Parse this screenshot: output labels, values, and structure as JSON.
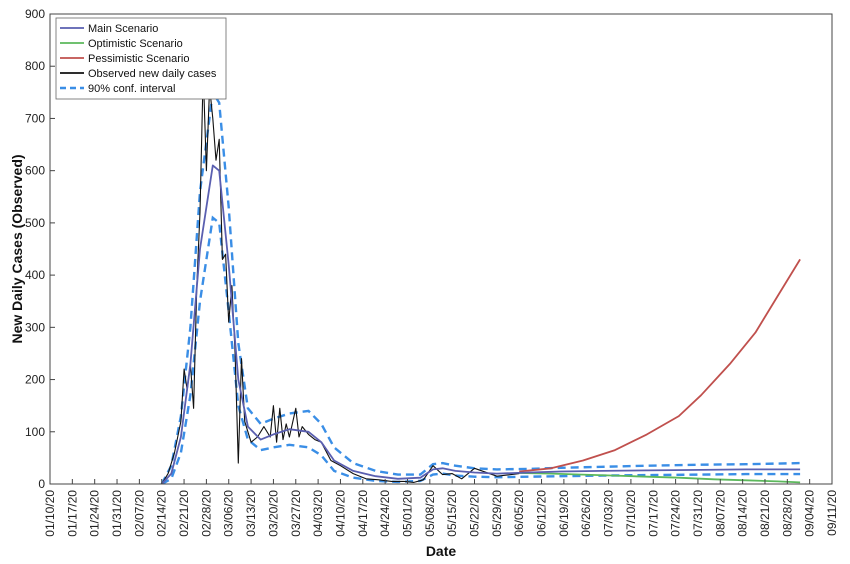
{
  "chart_data": {
    "type": "line",
    "title": "",
    "xlabel": "Date",
    "ylabel": "New Daily Cases (Observed)",
    "ylim": [
      0,
      900
    ],
    "yticks": [
      0,
      100,
      200,
      300,
      400,
      500,
      600,
      700,
      800,
      900
    ],
    "xlim": [
      "2020-01-10",
      "2020-09-11"
    ],
    "xticks": [
      "01/10/20",
      "01/17/20",
      "01/24/20",
      "01/31/20",
      "02/07/20",
      "02/14/20",
      "02/21/20",
      "02/28/20",
      "03/06/20",
      "03/13/20",
      "03/20/20",
      "03/27/20",
      "04/03/20",
      "04/10/20",
      "04/17/20",
      "04/24/20",
      "05/01/20",
      "05/08/20",
      "05/15/20",
      "05/22/20",
      "05/29/20",
      "06/05/20",
      "06/12/20",
      "06/19/20",
      "06/26/20",
      "07/03/20",
      "07/10/20",
      "07/17/20",
      "07/24/20",
      "07/31/20",
      "08/07/20",
      "08/14/20",
      "08/21/20",
      "08/28/20",
      "09/04/20",
      "09/11/20"
    ],
    "grid": false,
    "legend_position": "top-left",
    "colors": {
      "main": "#5a5fb0",
      "optimistic": "#5cb85c",
      "pessimistic": "#c0504d",
      "observed": "#111111",
      "ci": "#3a8ee6"
    },
    "series": [
      {
        "name": "Main Scenario",
        "style": "solid",
        "x": [
          "2020-02-14",
          "2020-02-17",
          "2020-02-20",
          "2020-02-23",
          "2020-02-26",
          "2020-03-01",
          "2020-03-03",
          "2020-03-06",
          "2020-03-09",
          "2020-03-12",
          "2020-03-16",
          "2020-03-20",
          "2020-03-25",
          "2020-03-31",
          "2020-04-04",
          "2020-04-08",
          "2020-04-14",
          "2020-04-21",
          "2020-04-28",
          "2020-05-05",
          "2020-05-09",
          "2020-05-12",
          "2020-05-16",
          "2020-05-22",
          "2020-05-29",
          "2020-06-08",
          "2020-06-18",
          "2020-07-01",
          "2020-07-15",
          "2020-08-01",
          "2020-08-15",
          "2020-09-01"
        ],
        "y": [
          0,
          20,
          90,
          230,
          450,
          610,
          600,
          420,
          200,
          110,
          85,
          95,
          105,
          100,
          80,
          45,
          25,
          15,
          10,
          12,
          28,
          30,
          25,
          22,
          20,
          22,
          24,
          25,
          26,
          27,
          28,
          28
        ]
      },
      {
        "name": "Optimistic Scenario",
        "style": "solid",
        "x": [
          "2020-06-05",
          "2020-06-15",
          "2020-06-25",
          "2020-07-05",
          "2020-07-15",
          "2020-07-25",
          "2020-08-05",
          "2020-08-15",
          "2020-08-25",
          "2020-09-01"
        ],
        "y": [
          21,
          20,
          18,
          16,
          14,
          12,
          9,
          7,
          5,
          3
        ]
      },
      {
        "name": "Pessimistic Scenario",
        "style": "solid",
        "x": [
          "2020-06-05",
          "2020-06-15",
          "2020-06-25",
          "2020-07-05",
          "2020-07-15",
          "2020-07-25",
          "2020-08-01",
          "2020-08-10",
          "2020-08-18",
          "2020-08-25",
          "2020-09-01"
        ],
        "y": [
          24,
          30,
          45,
          65,
          95,
          130,
          170,
          230,
          290,
          360,
          430
        ]
      },
      {
        "name": "Observed new daily cases",
        "style": "solid",
        "x": [
          "2020-02-14",
          "2020-02-16",
          "2020-02-18",
          "2020-02-20",
          "2020-02-21",
          "2020-02-22",
          "2020-02-23",
          "2020-02-24",
          "2020-02-25",
          "2020-02-26",
          "2020-02-27",
          "2020-02-28",
          "2020-02-29",
          "2020-03-01",
          "2020-03-02",
          "2020-03-03",
          "2020-03-04",
          "2020-03-05",
          "2020-03-06",
          "2020-03-07",
          "2020-03-08",
          "2020-03-09",
          "2020-03-10",
          "2020-03-11",
          "2020-03-12",
          "2020-03-13",
          "2020-03-15",
          "2020-03-17",
          "2020-03-19",
          "2020-03-20",
          "2020-03-21",
          "2020-03-22",
          "2020-03-23",
          "2020-03-24",
          "2020-03-25",
          "2020-03-27",
          "2020-03-28",
          "2020-03-29",
          "2020-03-31",
          "2020-04-02",
          "2020-04-04",
          "2020-04-07",
          "2020-04-10",
          "2020-04-14",
          "2020-04-18",
          "2020-04-22",
          "2020-04-26",
          "2020-04-30",
          "2020-05-03",
          "2020-05-06",
          "2020-05-09",
          "2020-05-12",
          "2020-05-15",
          "2020-05-18",
          "2020-05-22",
          "2020-05-29",
          "2020-06-05"
        ],
        "y": [
          0,
          20,
          60,
          120,
          220,
          180,
          230,
          145,
          380,
          520,
          790,
          600,
          760,
          700,
          620,
          660,
          430,
          440,
          310,
          380,
          250,
          40,
          240,
          120,
          100,
          80,
          90,
          110,
          90,
          150,
          80,
          145,
          85,
          115,
          90,
          145,
          90,
          110,
          95,
          85,
          80,
          45,
          35,
          20,
          10,
          8,
          5,
          5,
          3,
          8,
          35,
          18,
          20,
          10,
          30,
          15,
          20
        ]
      },
      {
        "name": "90% conf. interval",
        "style": "dashed",
        "bands": [
          {
            "x": [
              "2020-02-14",
              "2020-02-17",
              "2020-02-20",
              "2020-02-23",
              "2020-02-26",
              "2020-03-01",
              "2020-03-03",
              "2020-03-06",
              "2020-03-09",
              "2020-03-12",
              "2020-03-16",
              "2020-03-20",
              "2020-03-25",
              "2020-03-31",
              "2020-04-04",
              "2020-04-08",
              "2020-04-14",
              "2020-04-21",
              "2020-04-28",
              "2020-05-05",
              "2020-05-09",
              "2020-05-12",
              "2020-05-16",
              "2020-05-22",
              "2020-05-29",
              "2020-06-08",
              "2020-06-18",
              "2020-07-01",
              "2020-07-15",
              "2020-08-01",
              "2020-08-15",
              "2020-09-01"
            ],
            "y": [
              0,
              35,
              130,
              300,
              560,
              750,
              730,
              530,
              270,
              145,
              115,
              125,
              135,
              140,
              115,
              70,
              40,
              25,
              18,
              18,
              38,
              40,
              35,
              30,
              28,
              29,
              31,
              33,
              35,
              37,
              38,
              40
            ]
          },
          {
            "x": [
              "2020-02-14",
              "2020-02-17",
              "2020-02-20",
              "2020-02-23",
              "2020-02-26",
              "2020-03-01",
              "2020-03-03",
              "2020-03-06",
              "2020-03-09",
              "2020-03-12",
              "2020-03-16",
              "2020-03-20",
              "2020-03-25",
              "2020-03-31",
              "2020-04-04",
              "2020-04-08",
              "2020-04-14",
              "2020-04-21",
              "2020-04-28",
              "2020-05-05",
              "2020-05-09",
              "2020-05-12",
              "2020-05-16",
              "2020-05-22",
              "2020-05-29",
              "2020-06-08",
              "2020-06-18",
              "2020-07-01",
              "2020-07-15",
              "2020-08-01",
              "2020-08-15",
              "2020-09-01"
            ],
            "y": [
              0,
              10,
              60,
              170,
              350,
              510,
              500,
              330,
              150,
              85,
              65,
              70,
              75,
              70,
              55,
              25,
              12,
              6,
              4,
              6,
              18,
              20,
              16,
              14,
              13,
              14,
              15,
              16,
              17,
              18,
              19,
              19
            ]
          }
        ]
      }
    ]
  }
}
